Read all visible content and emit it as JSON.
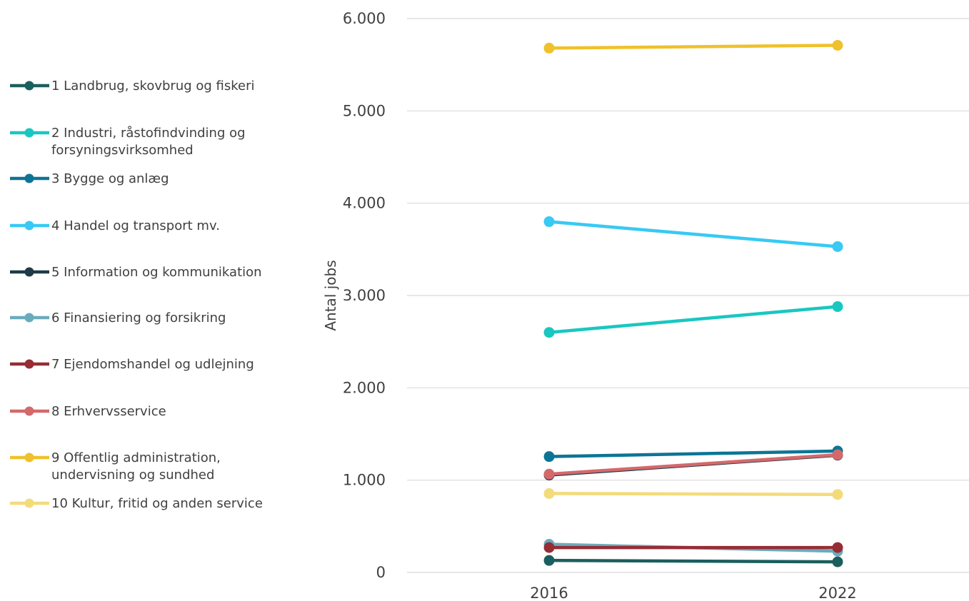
{
  "chart_data": {
    "type": "line",
    "title": "",
    "xlabel": "",
    "ylabel": "Antal jobs",
    "categories": [
      "2016",
      "2022"
    ],
    "ylim": [
      0,
      6000
    ],
    "yticks": [
      0,
      1000,
      2000,
      3000,
      4000,
      5000,
      6000
    ],
    "ytick_labels": [
      "0",
      "1.000",
      "2.000",
      "3.000",
      "4.000",
      "5.000",
      "6.000"
    ],
    "grid": "horizontal",
    "legend_position": "left",
    "series": [
      {
        "name": "1 Landbrug, skovbrug og fiskeri",
        "name_lines": [
          "1 Landbrug, skovbrug og fiskeri"
        ],
        "color": "#1b5e5e",
        "values": [
          130,
          115
        ]
      },
      {
        "name": "2 Industri, råstofindvinding og forsyningsvirksomhed",
        "name_lines": [
          "2 Industri, råstofindvinding og",
          "forsyningsvirksomhed"
        ],
        "color": "#19c7c1",
        "values": [
          2600,
          2880
        ]
      },
      {
        "name": "3 Bygge og anlæg",
        "name_lines": [
          "3 Bygge og anlæg"
        ],
        "color": "#0c7595",
        "values": [
          1255,
          1315
        ]
      },
      {
        "name": "4 Handel og transport mv.",
        "name_lines": [
          "4 Handel og transport mv."
        ],
        "color": "#38c9f4",
        "values": [
          3800,
          3530
        ]
      },
      {
        "name": "5 Information og kommunikation",
        "name_lines": [
          "5 Information og kommunikation"
        ],
        "color": "#1f3b47",
        "values": [
          1055,
          1270
        ]
      },
      {
        "name": "6 Finansiering og forsikring",
        "name_lines": [
          "6 Finansiering og forsikring"
        ],
        "color": "#6aacbc",
        "values": [
          305,
          230
        ]
      },
      {
        "name": "7 Ejendomshandel og udlejning",
        "name_lines": [
          "7 Ejendomshandel og udlejning"
        ],
        "color": "#972c35",
        "values": [
          270,
          270
        ]
      },
      {
        "name": "8 Erhvervsservice",
        "name_lines": [
          "8 Erhvervsservice"
        ],
        "color": "#d4696c",
        "values": [
          1065,
          1275
        ]
      },
      {
        "name": "9 Offentlig administration, undervisning og sundhed",
        "name_lines": [
          "9 Offentlig administration,",
          "undervisning og sundhed"
        ],
        "color": "#efc12b",
        "values": [
          5680,
          5710
        ]
      },
      {
        "name": "10 Kultur, fritid og anden service",
        "name_lines": [
          "10 Kultur, fritid og anden service"
        ],
        "color": "#f4db7a",
        "values": [
          855,
          845
        ]
      }
    ]
  }
}
